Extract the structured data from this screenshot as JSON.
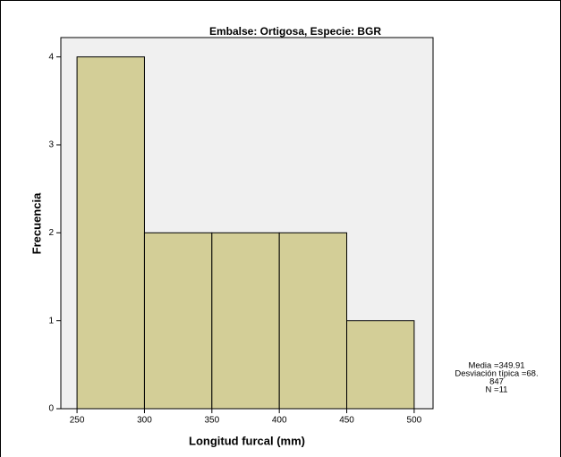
{
  "chart_data": {
    "type": "histogram",
    "title": "Embalse: Ortigosa, Especie: BGR",
    "xlabel": "Longitud furcal (mm)",
    "ylabel": "Frecuencia",
    "bins": [
      250,
      300,
      350,
      400,
      450,
      500
    ],
    "values": [
      4,
      2,
      2,
      2,
      1
    ],
    "color": "#d3ce97",
    "xlim": [
      238,
      514
    ],
    "ylim": [
      0,
      4.22
    ],
    "xticks": [
      250,
      300,
      350,
      400,
      450,
      500
    ],
    "yticks": [
      0,
      1,
      2,
      3,
      4
    ],
    "annotation": [
      "Media =349.91",
      "Desviación típica =68.",
      "847",
      "N =11"
    ]
  }
}
